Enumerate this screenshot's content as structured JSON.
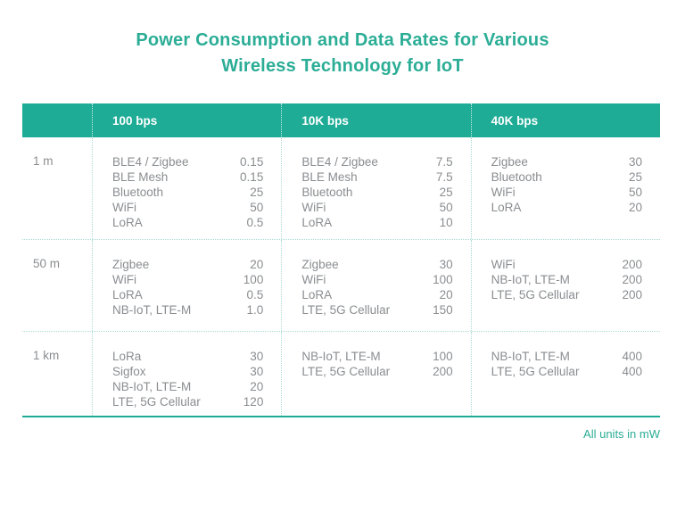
{
  "title": {
    "line1": "Power Consumption and Data Rates for Various",
    "line2": "Wireless Technology for IoT"
  },
  "footer": {
    "note": "All units in mW"
  },
  "colors": {
    "teal": "#1FAC96",
    "title": "#2BAD96",
    "text": "#8A8D90",
    "divider": "#AADCD4"
  },
  "chart_data": {
    "type": "table",
    "title": "Power Consumption and Data Rates for Various Wireless Technology for IoT",
    "unit": "mW",
    "column_headers": [
      "100 bps",
      "10K bps",
      "40K bps"
    ],
    "row_labels": [
      "1 m",
      "50 m",
      "1 km"
    ],
    "rows": [
      {
        "label": "1 m",
        "cells": [
          [
            {
              "name": "BLE4 / Zigbee",
              "value": "0.15"
            },
            {
              "name": "BLE Mesh",
              "value": "0.15"
            },
            {
              "name": "Bluetooth",
              "value": "25"
            },
            {
              "name": "WiFi",
              "value": "50"
            },
            {
              "name": "LoRA",
              "value": "0.5"
            }
          ],
          [
            {
              "name": "BLE4 / Zigbee",
              "value": "7.5"
            },
            {
              "name": "BLE Mesh",
              "value": "7.5"
            },
            {
              "name": "Bluetooth",
              "value": "25"
            },
            {
              "name": "WiFi",
              "value": "50"
            },
            {
              "name": "LoRA",
              "value": "10"
            }
          ],
          [
            {
              "name": "Zigbee",
              "value": "30"
            },
            {
              "name": "Bluetooth",
              "value": "25"
            },
            {
              "name": "WiFi",
              "value": "50"
            },
            {
              "name": "LoRA",
              "value": "20"
            }
          ]
        ]
      },
      {
        "label": "50 m",
        "cells": [
          [
            {
              "name": "Zigbee",
              "value": "20"
            },
            {
              "name": "WiFi",
              "value": "100"
            },
            {
              "name": "LoRA",
              "value": "0.5"
            },
            {
              "name": "NB-IoT, LTE-M",
              "value": "1.0"
            }
          ],
          [
            {
              "name": "Zigbee",
              "value": "30"
            },
            {
              "name": "WiFi",
              "value": "100"
            },
            {
              "name": "LoRA",
              "value": "20"
            },
            {
              "name": "LTE, 5G Cellular",
              "value": "150"
            }
          ],
          [
            {
              "name": "WiFi",
              "value": "200"
            },
            {
              "name": "NB-IoT, LTE-M",
              "value": "200"
            },
            {
              "name": "LTE, 5G Cellular",
              "value": "200"
            }
          ]
        ]
      },
      {
        "label": "1 km",
        "cells": [
          [
            {
              "name": "LoRa",
              "value": "30"
            },
            {
              "name": "Sigfox",
              "value": "30"
            },
            {
              "name": "NB-IoT, LTE-M",
              "value": "20"
            },
            {
              "name": "LTE, 5G Cellular",
              "value": "120"
            }
          ],
          [
            {
              "name": "NB-IoT, LTE-M",
              "value": "100"
            },
            {
              "name": "LTE, 5G Cellular",
              "value": "200"
            }
          ],
          [
            {
              "name": "NB-IoT, LTE-M",
              "value": "400"
            },
            {
              "name": "LTE, 5G Cellular",
              "value": "400"
            }
          ]
        ]
      }
    ]
  }
}
